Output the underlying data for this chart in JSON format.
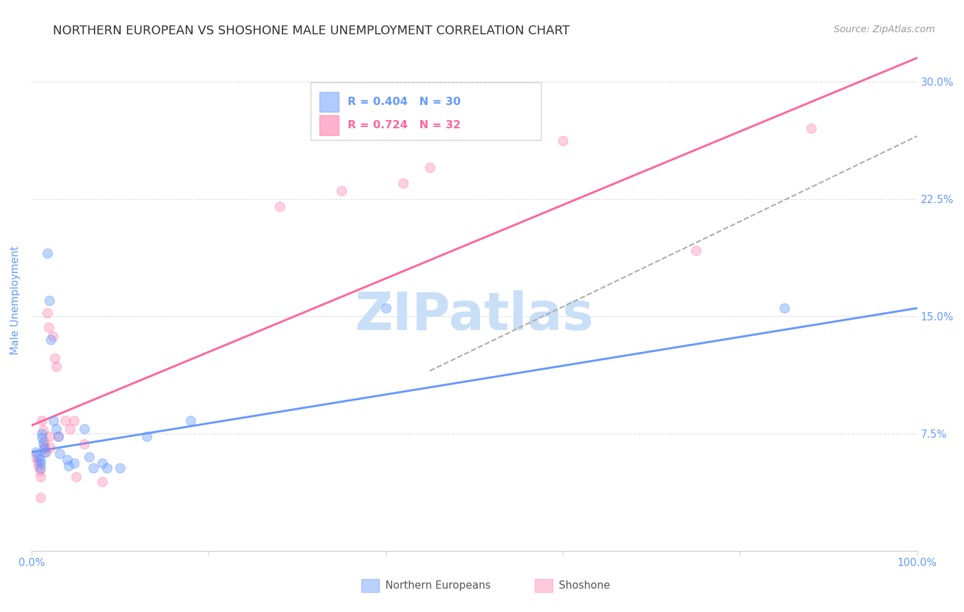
{
  "title": "NORTHERN EUROPEAN VS SHOSHONE MALE UNEMPLOYMENT CORRELATION CHART",
  "source": "Source: ZipAtlas.com",
  "ylabel": "Male Unemployment",
  "watermark": "ZIPatlas",
  "xlim": [
    0.0,
    1.0
  ],
  "ylim": [
    0.0,
    0.32
  ],
  "xtick_positions": [
    0.0,
    0.2,
    0.4,
    0.6,
    0.8,
    1.0
  ],
  "xtick_labels": [
    "0.0%",
    "",
    "",
    "",
    "",
    "100.0%"
  ],
  "ytick_positions": [
    0.0,
    0.075,
    0.15,
    0.225,
    0.3
  ],
  "ytick_labels": [
    "",
    "7.5%",
    "15.0%",
    "22.5%",
    "30.0%"
  ],
  "blue_color": "#6699ff",
  "pink_color": "#ff6699",
  "title_color": "#333333",
  "axis_color": "#6699ff",
  "legend_blue_label": "R = 0.404   N = 30",
  "legend_pink_label": "R = 0.724   N = 32",
  "bottom_legend_blue": "Northern Europeans",
  "bottom_legend_pink": "Shoshone",
  "blue_scatter": [
    [
      0.005,
      0.063
    ],
    [
      0.008,
      0.06
    ],
    [
      0.01,
      0.058
    ],
    [
      0.01,
      0.056
    ],
    [
      0.01,
      0.053
    ],
    [
      0.012,
      0.075
    ],
    [
      0.012,
      0.072
    ],
    [
      0.013,
      0.068
    ],
    [
      0.014,
      0.065
    ],
    [
      0.015,
      0.063
    ],
    [
      0.018,
      0.19
    ],
    [
      0.02,
      0.16
    ],
    [
      0.022,
      0.135
    ],
    [
      0.025,
      0.083
    ],
    [
      0.028,
      0.078
    ],
    [
      0.03,
      0.073
    ],
    [
      0.032,
      0.062
    ],
    [
      0.04,
      0.058
    ],
    [
      0.042,
      0.054
    ],
    [
      0.048,
      0.056
    ],
    [
      0.06,
      0.078
    ],
    [
      0.065,
      0.06
    ],
    [
      0.07,
      0.053
    ],
    [
      0.08,
      0.056
    ],
    [
      0.085,
      0.053
    ],
    [
      0.1,
      0.053
    ],
    [
      0.13,
      0.073
    ],
    [
      0.18,
      0.083
    ],
    [
      0.4,
      0.155
    ],
    [
      0.85,
      0.155
    ]
  ],
  "pink_scatter": [
    [
      0.005,
      0.06
    ],
    [
      0.007,
      0.057
    ],
    [
      0.008,
      0.054
    ],
    [
      0.009,
      0.051
    ],
    [
      0.01,
      0.047
    ],
    [
      0.01,
      0.034
    ],
    [
      0.012,
      0.083
    ],
    [
      0.013,
      0.077
    ],
    [
      0.014,
      0.07
    ],
    [
      0.015,
      0.066
    ],
    [
      0.016,
      0.063
    ],
    [
      0.018,
      0.152
    ],
    [
      0.019,
      0.143
    ],
    [
      0.02,
      0.073
    ],
    [
      0.021,
      0.066
    ],
    [
      0.024,
      0.137
    ],
    [
      0.026,
      0.123
    ],
    [
      0.028,
      0.118
    ],
    [
      0.03,
      0.073
    ],
    [
      0.038,
      0.083
    ],
    [
      0.043,
      0.078
    ],
    [
      0.048,
      0.083
    ],
    [
      0.05,
      0.047
    ],
    [
      0.06,
      0.068
    ],
    [
      0.08,
      0.044
    ],
    [
      0.35,
      0.23
    ],
    [
      0.45,
      0.245
    ],
    [
      0.6,
      0.262
    ],
    [
      0.75,
      0.192
    ],
    [
      0.88,
      0.27
    ],
    [
      0.42,
      0.235
    ],
    [
      0.28,
      0.22
    ]
  ],
  "blue_line_x": [
    0.0,
    1.0
  ],
  "blue_line_y": [
    0.063,
    0.155
  ],
  "pink_line_x": [
    0.0,
    1.0
  ],
  "pink_line_y": [
    0.08,
    0.315
  ],
  "dashed_line_x": [
    0.45,
    1.0
  ],
  "dashed_line_y": [
    0.115,
    0.265
  ],
  "grid_color": "#dddddd",
  "bg_color": "#ffffff",
  "title_fontsize": 13,
  "axis_fontsize": 11,
  "tick_fontsize": 11,
  "marker_size": 100,
  "watermark_fontsize": 55,
  "watermark_color": "#c8dff7",
  "source_color": "#999999",
  "source_fontsize": 10
}
